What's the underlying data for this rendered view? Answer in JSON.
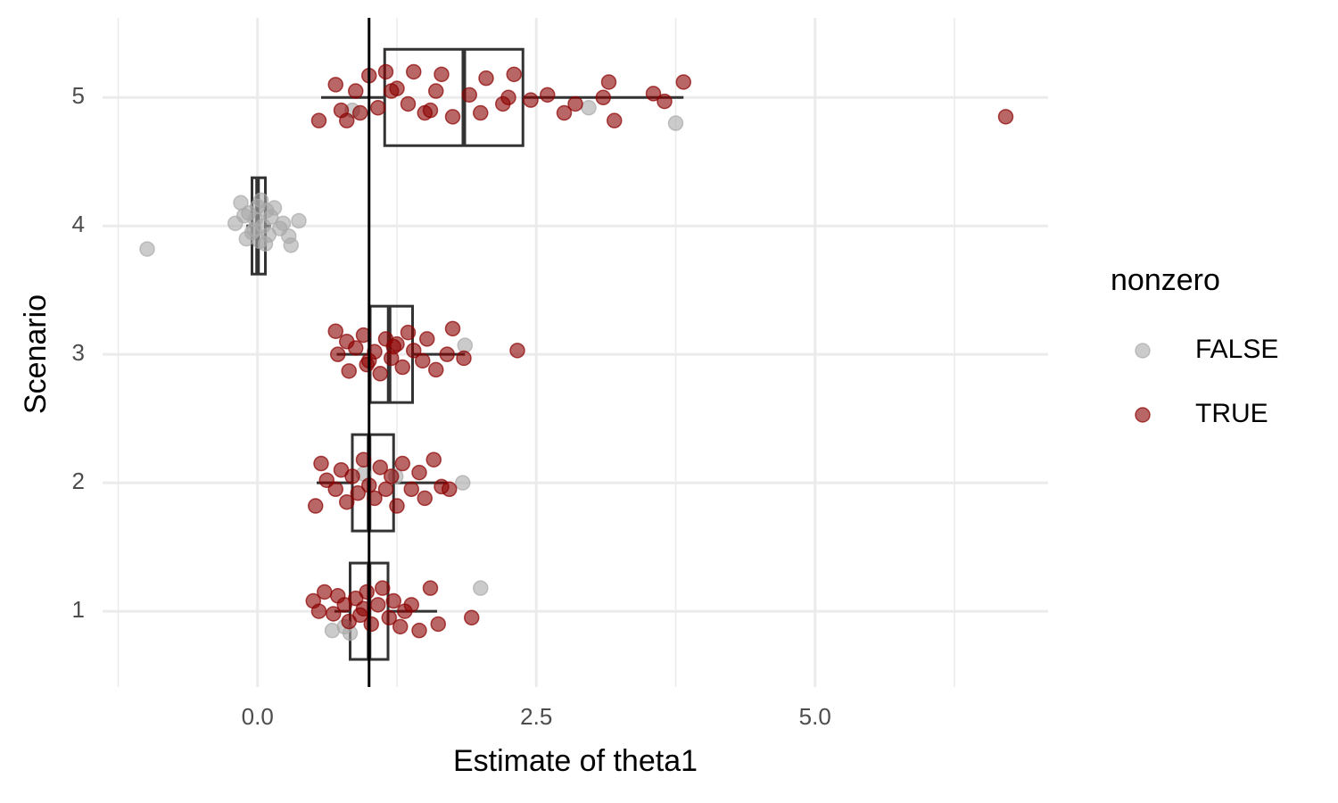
{
  "chart_data": {
    "type": "boxplot",
    "x_label": "Estimate of theta1",
    "y_label": "Scenario",
    "xlim": [
      -1.39,
      7.09
    ],
    "ylim": [
      0.41,
      5.62
    ],
    "xticks": [
      {
        "value": 0,
        "label": "0.0"
      },
      2.5,
      {
        "value": 5,
        "label": "5.0"
      }
    ],
    "xminor": [
      -1.25,
      1.25,
      3.75,
      6.25
    ],
    "yticks": [
      1,
      2,
      3,
      4,
      5
    ],
    "grid": true,
    "reference_line": 1,
    "legend_title": "nonzero",
    "boxes": [
      {
        "y": 1,
        "low": 0.69,
        "q1": 0.83,
        "median": 1.0,
        "q3": 1.17,
        "high": 1.61
      },
      {
        "y": 2,
        "low": 0.53,
        "q1": 0.85,
        "median": 1.0,
        "q3": 1.22,
        "high": 1.7
      },
      {
        "y": 3,
        "low": 0.71,
        "q1": 1.01,
        "median": 1.18,
        "q3": 1.39,
        "high": 1.86
      },
      {
        "y": 4,
        "low": -0.1,
        "q1": -0.05,
        "median": 0.0,
        "q3": 0.07,
        "high": 0.12
      },
      {
        "y": 5,
        "low": 0.57,
        "q1": 1.14,
        "median": 1.85,
        "q3": 2.38,
        "high": 3.82
      }
    ],
    "series": [
      {
        "name": "FALSE",
        "color": "#a9a9a9",
        "x": [
          -0.99,
          0.37,
          0.3,
          0.28,
          -0.2,
          -0.15,
          -0.1,
          -0.08,
          -0.05,
          -0.02,
          0.0,
          0.02,
          0.05,
          0.08,
          0.1,
          0.12,
          0.15,
          0.2,
          0.23,
          -0.12,
          0.03,
          0.07,
          -0.03,
          0.85,
          2.97,
          3.75,
          1.86,
          1.84,
          0.95,
          1.24,
          2.0,
          0.67,
          0.78,
          0.83
        ],
        "values": [
          3.82,
          4.04,
          3.85,
          3.92,
          4.02,
          4.18,
          3.9,
          4.1,
          3.95,
          4.05,
          4.15,
          3.88,
          4.0,
          4.12,
          3.93,
          4.07,
          4.14,
          3.98,
          4.02,
          4.08,
          4.2,
          3.86,
          3.97,
          4.9,
          4.92,
          4.8,
          3.07,
          2.0,
          2.07,
          2.05,
          1.18,
          0.85,
          0.88,
          0.83
        ]
      },
      {
        "name": "TRUE",
        "color": "#8b0000",
        "x": [
          0.55,
          0.7,
          0.75,
          0.8,
          0.88,
          0.92,
          1.0,
          1.08,
          1.15,
          1.25,
          1.35,
          1.4,
          1.5,
          1.6,
          1.65,
          1.75,
          1.9,
          2.0,
          2.05,
          2.2,
          2.3,
          2.45,
          2.6,
          2.75,
          2.85,
          3.1,
          3.15,
          3.2,
          3.55,
          3.65,
          3.82,
          6.71,
          1.2,
          2.25,
          1.55,
          0.7,
          0.72,
          0.8,
          0.82,
          0.88,
          0.95,
          0.98,
          1.05,
          1.1,
          1.15,
          1.2,
          1.25,
          1.3,
          1.35,
          1.4,
          1.48,
          1.52,
          1.6,
          1.7,
          1.75,
          1.85,
          2.33,
          1.0,
          1.22,
          0.52,
          0.57,
          0.62,
          0.7,
          0.75,
          0.8,
          0.85,
          0.9,
          0.95,
          1.0,
          1.05,
          1.1,
          1.15,
          1.2,
          1.25,
          1.3,
          1.38,
          1.45,
          1.5,
          1.58,
          1.65,
          1.72,
          0.5,
          0.55,
          0.6,
          0.68,
          0.72,
          0.78,
          0.82,
          0.88,
          0.92,
          0.98,
          1.02,
          1.08,
          1.12,
          1.18,
          1.22,
          1.28,
          1.32,
          1.38,
          1.45,
          1.55,
          1.62,
          1.92,
          0.95
        ],
        "values": [
          4.82,
          5.1,
          4.9,
          4.82,
          5.05,
          4.88,
          5.17,
          4.92,
          5.2,
          5.07,
          4.95,
          5.2,
          4.88,
          5.05,
          5.18,
          4.85,
          5.02,
          4.88,
          5.15,
          4.95,
          5.18,
          4.98,
          5.02,
          4.88,
          4.95,
          5.0,
          5.12,
          4.82,
          5.03,
          4.97,
          5.12,
          4.85,
          5.05,
          5.0,
          4.9,
          3.18,
          3.0,
          3.1,
          2.87,
          3.05,
          3.15,
          2.92,
          3.02,
          2.85,
          3.12,
          2.97,
          3.08,
          2.9,
          3.17,
          3.03,
          2.95,
          3.12,
          2.88,
          3.0,
          3.2,
          2.97,
          3.03,
          2.95,
          3.06,
          1.82,
          2.15,
          2.02,
          1.95,
          2.1,
          1.85,
          2.05,
          1.92,
          2.18,
          1.98,
          1.88,
          2.12,
          1.95,
          2.05,
          1.82,
          2.15,
          1.95,
          2.08,
          1.88,
          2.18,
          1.97,
          1.95,
          1.08,
          1.0,
          1.15,
          0.98,
          1.12,
          1.05,
          0.92,
          1.1,
          0.97,
          1.15,
          0.9,
          1.05,
          1.18,
          0.95,
          1.08,
          0.88,
          1.0,
          1.05,
          0.85,
          1.18,
          0.9,
          0.95,
          1.02
        ]
      }
    ]
  }
}
